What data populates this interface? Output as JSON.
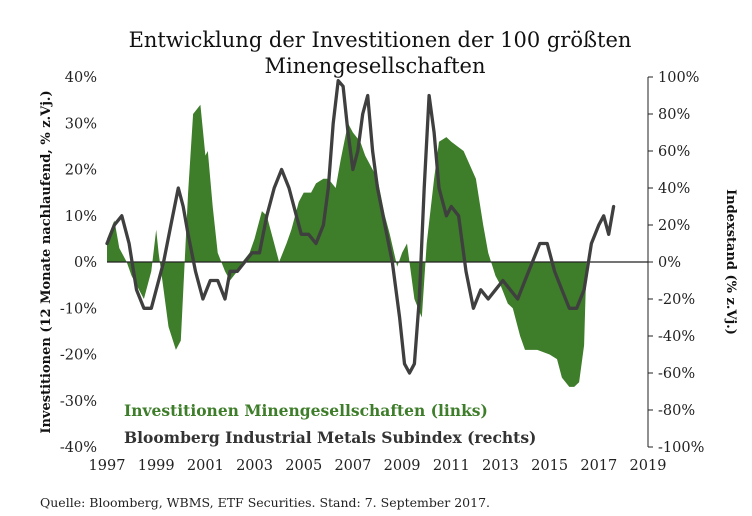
{
  "chart_data": {
    "type": "area",
    "title_line1": "Entwicklung der Investitionen der 100 größten",
    "title_line2": "Minengesellschaften",
    "ylabel_left": "Investitionen (12 Monate nachlaufend, % z.Vj.)",
    "ylabel_right": "Indexstand (% z.Vj.)",
    "xlim": [
      1997,
      2019
    ],
    "ylim_left": [
      -40,
      40
    ],
    "ylim_right": [
      -100,
      100
    ],
    "x_ticks": [
      "1997",
      "1999",
      "2001",
      "2003",
      "2005",
      "2007",
      "2009",
      "2011",
      "2013",
      "2015",
      "2017",
      "2019"
    ],
    "y_ticks_left": [
      "40%",
      "30%",
      "20%",
      "10%",
      "0%",
      "-10%",
      "-20%",
      "-30%",
      "-40%"
    ],
    "y_ticks_right": [
      "100%",
      "80%",
      "60%",
      "40%",
      "20%",
      "0%",
      "-20%",
      "-40%",
      "-60%",
      "-80%",
      "-100%"
    ],
    "grid": false,
    "legend_position": "bottom-left",
    "series": [
      {
        "name": "Investitionen Minengesellschaften (links)",
        "axis": "left",
        "type": "area",
        "color": "#3e7d2a",
        "x": [
          1997.0,
          1997.3,
          1997.5,
          1997.8,
          1998.0,
          1998.3,
          1998.5,
          1998.8,
          1999.0,
          1999.1,
          1999.3,
          1999.5,
          1999.8,
          2000.0,
          2000.3,
          2000.5,
          2000.8,
          2001.0,
          2001.1,
          2001.3,
          2001.5,
          2001.8,
          2002.0,
          2002.3,
          2002.5,
          2002.8,
          2003.0,
          2003.3,
          2003.5,
          2003.8,
          2004.0,
          2004.3,
          2004.5,
          2004.8,
          2005.0,
          2005.3,
          2005.5,
          2005.8,
          2006.0,
          2006.3,
          2006.5,
          2006.8,
          2007.0,
          2007.3,
          2007.5,
          2007.8,
          2008.0,
          2008.3,
          2008.5,
          2008.8,
          2009.0,
          2009.2,
          2009.5,
          2009.8,
          2010.0,
          2010.3,
          2010.5,
          2010.8,
          2011.0,
          2011.5,
          2012.0,
          2012.3,
          2012.5,
          2012.8,
          2013.0,
          2013.3,
          2013.5,
          2013.8,
          2014.0,
          2014.5,
          2015.0,
          2015.3,
          2015.5,
          2015.8,
          2016.0,
          2016.2,
          2016.4,
          2016.5
        ],
        "values": [
          5,
          9,
          3,
          0,
          -3,
          -6,
          -8,
          -2,
          7,
          2,
          -6,
          -14,
          -19,
          -17,
          15,
          32,
          34,
          23,
          24,
          12,
          2,
          -2,
          -4,
          -2,
          0,
          2,
          5,
          11,
          10,
          4,
          0,
          4,
          7,
          13,
          15,
          15,
          17,
          18,
          18,
          16,
          22,
          30,
          28,
          26,
          23,
          20,
          18,
          10,
          6,
          -1,
          2,
          4,
          -8,
          -12,
          4,
          18,
          26,
          27,
          26,
          24,
          18,
          8,
          2,
          -3,
          -5,
          -9,
          -10,
          -16,
          -19,
          -19,
          -20,
          -21,
          -25,
          -27,
          -27,
          -26,
          -18,
          0
        ]
      },
      {
        "name": "Bloomberg Industrial Metals Subindex (rechts)",
        "axis": "right",
        "type": "line",
        "color": "#3f3f3f",
        "x": [
          1997.0,
          1997.3,
          1997.6,
          1997.9,
          1998.2,
          1998.5,
          1998.8,
          1999.0,
          1999.3,
          1999.6,
          1999.9,
          2000.1,
          2000.3,
          2000.6,
          2000.9,
          2001.2,
          2001.5,
          2001.8,
          2002.0,
          2002.3,
          2002.6,
          2002.9,
          2003.2,
          2003.5,
          2003.8,
          2004.1,
          2004.4,
          2004.6,
          2004.9,
          2005.2,
          2005.5,
          2005.8,
          2006.0,
          2006.2,
          2006.4,
          2006.6,
          2006.8,
          2007.0,
          2007.2,
          2007.4,
          2007.6,
          2007.8,
          2008.0,
          2008.3,
          2008.6,
          2008.9,
          2009.1,
          2009.3,
          2009.5,
          2009.7,
          2009.9,
          2010.1,
          2010.3,
          2010.5,
          2010.8,
          2011.0,
          2011.3,
          2011.6,
          2011.9,
          2012.2,
          2012.5,
          2012.8,
          2013.1,
          2013.4,
          2013.7,
          2014.0,
          2014.3,
          2014.6,
          2014.9,
          2015.2,
          2015.5,
          2015.8,
          2016.1,
          2016.4,
          2016.7,
          2017.0,
          2017.2,
          2017.4,
          2017.6
        ],
        "values": [
          10,
          20,
          25,
          10,
          -15,
          -25,
          -25,
          -15,
          0,
          20,
          40,
          30,
          15,
          -5,
          -20,
          -10,
          -10,
          -20,
          -5,
          -5,
          0,
          5,
          5,
          25,
          40,
          50,
          40,
          30,
          15,
          15,
          10,
          20,
          40,
          75,
          98,
          95,
          70,
          50,
          60,
          80,
          90,
          60,
          40,
          20,
          0,
          -30,
          -55,
          -60,
          -55,
          -20,
          40,
          90,
          70,
          40,
          25,
          30,
          25,
          -5,
          -25,
          -15,
          -20,
          -15,
          -10,
          -15,
          -20,
          -10,
          0,
          10,
          10,
          -5,
          -15,
          -25,
          -25,
          -15,
          10,
          20,
          25,
          15,
          30
        ]
      }
    ]
  },
  "source_text": "Quelle: Bloomberg, WBMS, ETF Securities. Stand: 7. September 2017."
}
